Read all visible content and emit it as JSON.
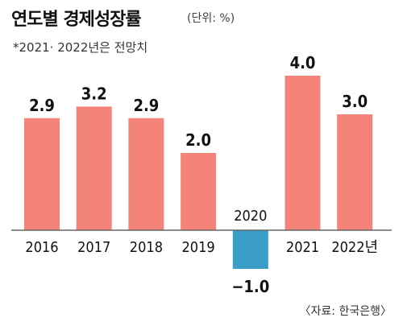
{
  "header": {
    "title": "연도별 경제성장률",
    "unit": "(단위: %)"
  },
  "note": "*2021· 2022년은 전망치",
  "source": "〈자료: 한국은행〉",
  "colors": {
    "positive_bar": "#F4837A",
    "negative_bar": "#3A9DC8",
    "axis": "#666666"
  },
  "chart_data": {
    "type": "bar",
    "title": "연도별 경제성장률",
    "subtitle": "(단위: %)",
    "categories": [
      "2016",
      "2017",
      "2018",
      "2019",
      "2020",
      "2021",
      "2022년"
    ],
    "values": [
      2.9,
      3.2,
      2.9,
      2.0,
      -1.0,
      4.0,
      3.0
    ],
    "value_labels": [
      "2.9",
      "3.2",
      "2.9",
      "2.0",
      "−1.0",
      "4.0",
      "3.0"
    ],
    "xlabel": "",
    "ylabel": "",
    "ylim": [
      -1.0,
      4.0
    ],
    "grid": false,
    "legend": "none"
  }
}
